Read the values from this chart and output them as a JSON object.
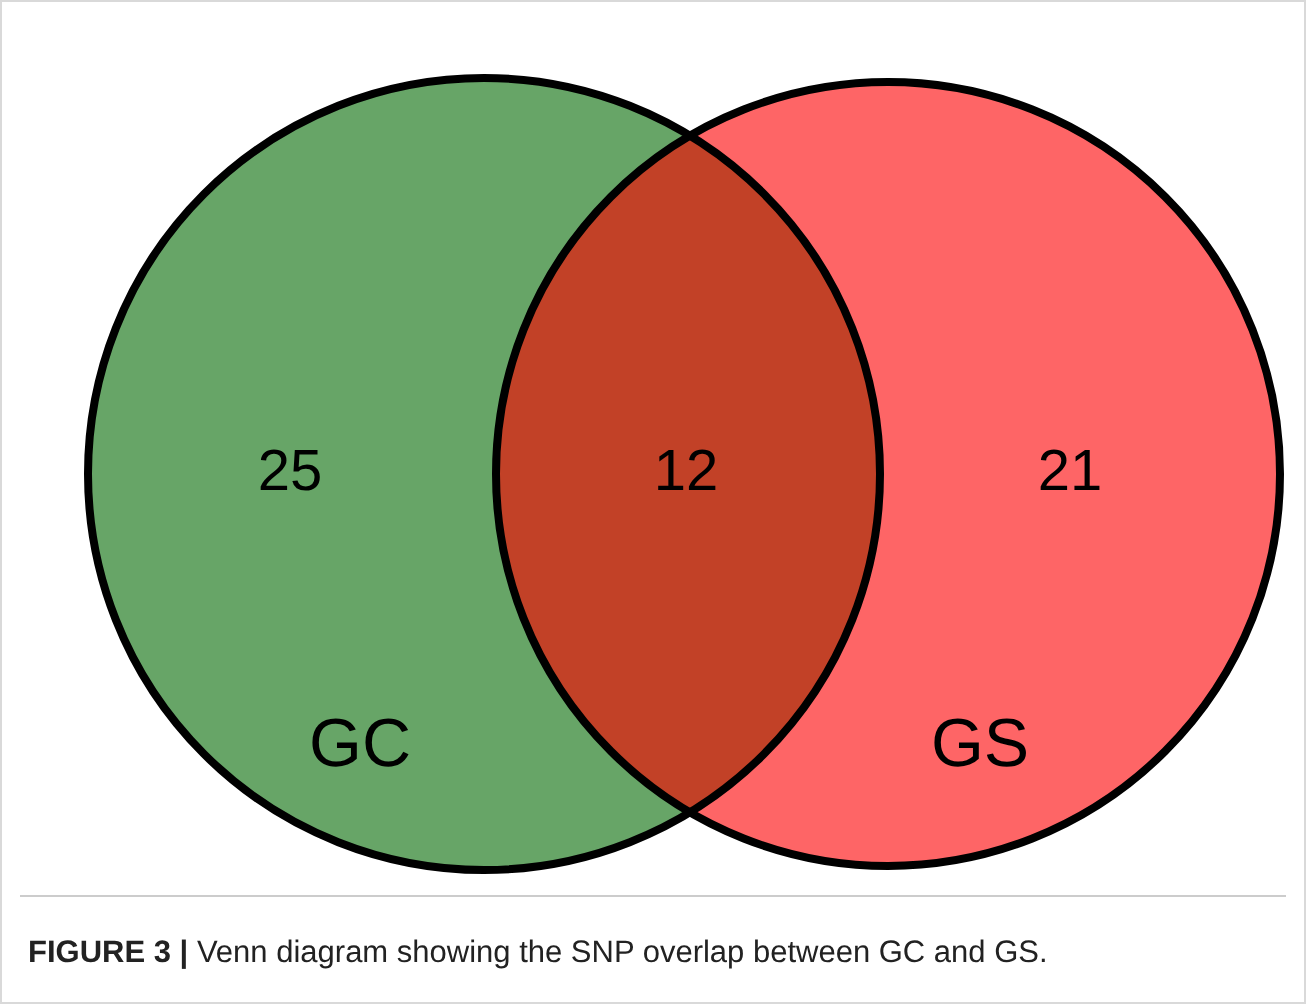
{
  "chart_data": {
    "type": "other",
    "title": "FIGURE 3 | Venn diagram showing the SNP overlap between GC and GS.",
    "categories": [
      "GC",
      null,
      "GS"
    ],
    "values": [
      25,
      12,
      21
    ],
    "data_labels": true,
    "colors": [
      "#67a567",
      "#c24127",
      "#fe6566"
    ]
  }
}
